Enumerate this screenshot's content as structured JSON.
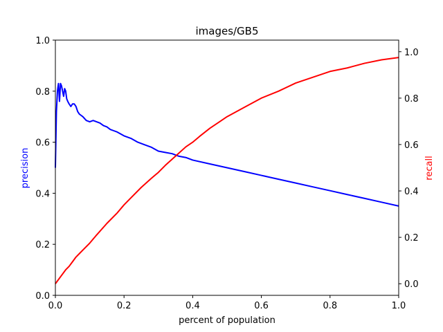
{
  "chart_data": {
    "type": "line",
    "title": "images/GB5",
    "xlabel": "percent of population",
    "ylabel_left": "precision",
    "ylabel_right": "recall",
    "xlim": [
      0.0,
      1.0
    ],
    "ylim_left": [
      0.0,
      1.0
    ],
    "ylim_right": [
      -0.05,
      1.05
    ],
    "x_ticks": [
      "0.0",
      "0.2",
      "0.4",
      "0.6",
      "0.8",
      "1.0"
    ],
    "y_left_ticks": [
      "0.0",
      "0.2",
      "0.4",
      "0.6",
      "0.8",
      "1.0"
    ],
    "y_right_ticks": [
      "0.0",
      "0.2",
      "0.4",
      "0.6",
      "0.8",
      "1.0"
    ],
    "grid": false,
    "colors": {
      "precision": "#0000ff",
      "recall": "#ff0000",
      "axis": "#000000"
    },
    "series": [
      {
        "axis": "left",
        "x": [
          0.0,
          0.003,
          0.006,
          0.009,
          0.012,
          0.015,
          0.018,
          0.021,
          0.024,
          0.027,
          0.03,
          0.033,
          0.036,
          0.04,
          0.045,
          0.05,
          0.055,
          0.06,
          0.065,
          0.07,
          0.08,
          0.09,
          0.1,
          0.11,
          0.12,
          0.13,
          0.14,
          0.15,
          0.16,
          0.17,
          0.18,
          0.2,
          0.22,
          0.24,
          0.26,
          0.28,
          0.3,
          0.32,
          0.34,
          0.36,
          0.38,
          0.4,
          0.45,
          0.5,
          0.55,
          0.6,
          0.65,
          0.7,
          0.75,
          0.8,
          0.85,
          0.9,
          0.95,
          1.0
        ],
        "values": [
          0.5,
          0.72,
          0.8,
          0.83,
          0.76,
          0.83,
          0.82,
          0.8,
          0.78,
          0.81,
          0.8,
          0.77,
          0.76,
          0.75,
          0.74,
          0.75,
          0.75,
          0.74,
          0.72,
          0.71,
          0.7,
          0.685,
          0.68,
          0.685,
          0.68,
          0.675,
          0.665,
          0.66,
          0.65,
          0.645,
          0.64,
          0.625,
          0.615,
          0.6,
          0.59,
          0.58,
          0.565,
          0.56,
          0.555,
          0.545,
          0.54,
          0.53,
          0.515,
          0.5,
          0.485,
          0.47,
          0.455,
          0.44,
          0.425,
          0.41,
          0.395,
          0.38,
          0.365,
          0.35
        ]
      },
      {
        "axis": "right",
        "x": [
          0.0,
          0.01,
          0.02,
          0.03,
          0.04,
          0.05,
          0.06,
          0.07,
          0.08,
          0.1,
          0.12,
          0.15,
          0.18,
          0.2,
          0.22,
          0.25,
          0.28,
          0.3,
          0.32,
          0.35,
          0.38,
          0.4,
          0.42,
          0.45,
          0.48,
          0.5,
          0.55,
          0.6,
          0.65,
          0.7,
          0.75,
          0.8,
          0.85,
          0.9,
          0.95,
          1.0
        ],
        "values": [
          0.0,
          0.02,
          0.04,
          0.06,
          0.075,
          0.095,
          0.115,
          0.13,
          0.145,
          0.175,
          0.21,
          0.26,
          0.305,
          0.34,
          0.37,
          0.415,
          0.455,
          0.48,
          0.51,
          0.55,
          0.59,
          0.61,
          0.635,
          0.67,
          0.7,
          0.72,
          0.76,
          0.8,
          0.83,
          0.865,
          0.89,
          0.915,
          0.93,
          0.95,
          0.965,
          0.975
        ]
      }
    ]
  }
}
